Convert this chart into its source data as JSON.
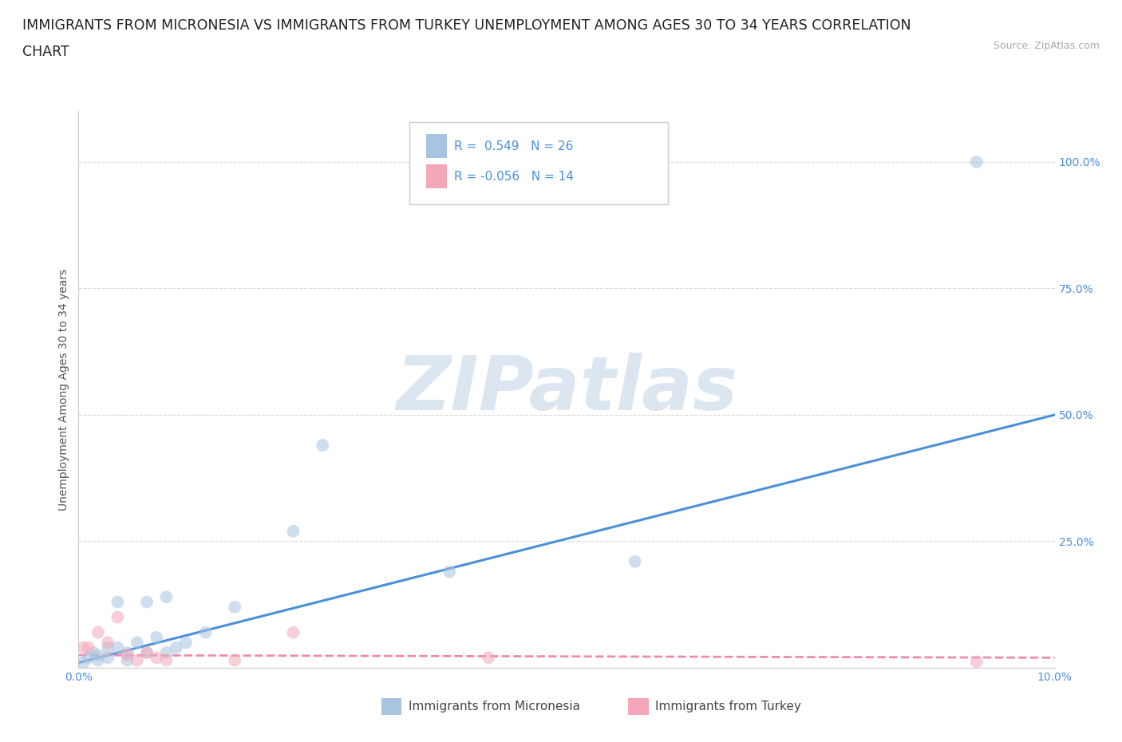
{
  "title_line1": "IMMIGRANTS FROM MICRONESIA VS IMMIGRANTS FROM TURKEY UNEMPLOYMENT AMONG AGES 30 TO 34 YEARS CORRELATION",
  "title_line2": "CHART",
  "source_text": "Source: ZipAtlas.com",
  "ylabel": "Unemployment Among Ages 30 to 34 years",
  "xlim": [
    0.0,
    0.1
  ],
  "ylim": [
    0.0,
    1.1
  ],
  "x_ticks": [
    0.0,
    0.02,
    0.04,
    0.06,
    0.08,
    0.1
  ],
  "x_tick_labels": [
    "0.0%",
    "",
    "",
    "",
    "",
    "10.0%"
  ],
  "y_ticks": [
    0.0,
    0.25,
    0.5,
    0.75,
    1.0
  ],
  "y_tick_labels": [
    "",
    "25.0%",
    "50.0%",
    "75.0%",
    "100.0%"
  ],
  "micronesia_color": "#a8c4e0",
  "turkey_color": "#f4a7b9",
  "micronesia_line_color": "#4a90d9",
  "turkey_line_color": "#f08aaa",
  "watermark_text": "ZIPatlas",
  "watermark_color": "#dce6f0",
  "legend_micronesia_label": "Immigrants from Micronesia",
  "legend_turkey_label": "Immigrants from Turkey",
  "R_micronesia": "0.549",
  "N_micronesia": "26",
  "R_turkey": "-0.056",
  "N_turkey": "14",
  "micronesia_x": [
    0.0005,
    0.001,
    0.0015,
    0.002,
    0.002,
    0.003,
    0.003,
    0.004,
    0.004,
    0.005,
    0.005,
    0.006,
    0.007,
    0.007,
    0.008,
    0.009,
    0.009,
    0.01,
    0.011,
    0.013,
    0.016,
    0.022,
    0.025,
    0.038,
    0.057,
    0.092
  ],
  "micronesia_y": [
    0.01,
    0.02,
    0.03,
    0.015,
    0.025,
    0.04,
    0.02,
    0.04,
    0.13,
    0.03,
    0.015,
    0.05,
    0.13,
    0.03,
    0.06,
    0.14,
    0.03,
    0.04,
    0.05,
    0.07,
    0.12,
    0.27,
    0.44,
    0.19,
    0.21,
    1.0
  ],
  "turkey_x": [
    0.0005,
    0.001,
    0.002,
    0.003,
    0.004,
    0.005,
    0.006,
    0.007,
    0.008,
    0.009,
    0.016,
    0.022,
    0.042,
    0.092
  ],
  "turkey_y": [
    0.04,
    0.04,
    0.07,
    0.05,
    0.1,
    0.025,
    0.015,
    0.03,
    0.02,
    0.015,
    0.015,
    0.07,
    0.02,
    0.012
  ],
  "mic_line_x0": 0.0,
  "mic_line_y0": 0.01,
  "mic_line_x1": 0.1,
  "mic_line_y1": 0.5,
  "tur_line_x0": 0.0,
  "tur_line_y0": 0.025,
  "tur_line_x1": 0.1,
  "tur_line_y1": 0.02,
  "grid_color": "#d8d8d8",
  "background_color": "#ffffff",
  "title_fontsize": 12.5,
  "axis_label_fontsize": 10,
  "tick_label_fontsize": 10,
  "legend_fontsize": 11,
  "marker_size": 130,
  "marker_alpha": 0.55,
  "tick_color": "#4a90d9"
}
